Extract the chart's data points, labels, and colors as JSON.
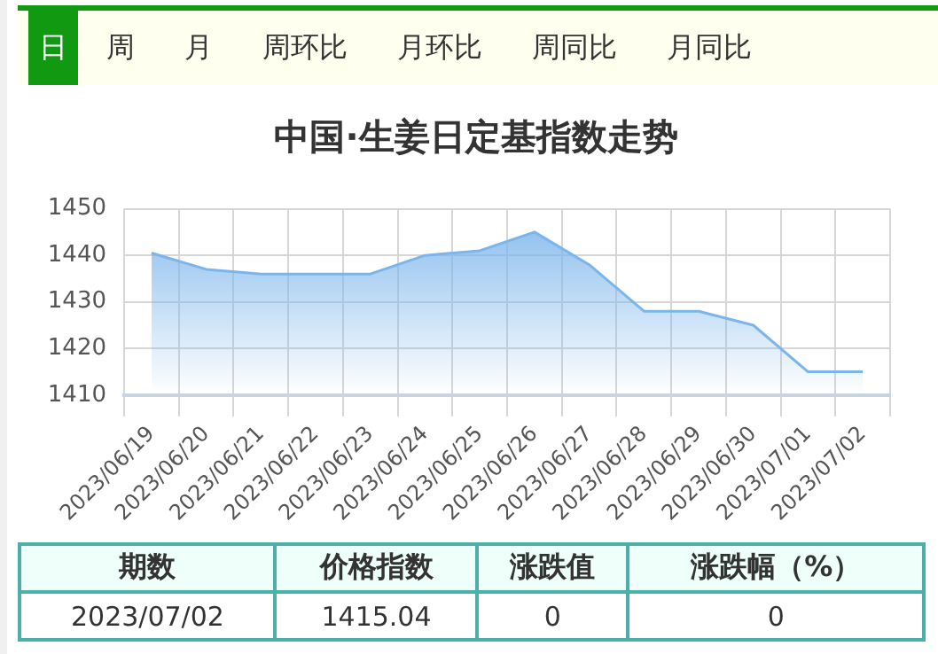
{
  "chart_data": [
    {
      "type": "other",
      "annotations": [
        "日",
        "周",
        "月",
        "周环比",
        "月环比",
        "周同比",
        "月同比"
      ]
    },
    {
      "type": "area",
      "title": "中国·生姜日定基指数走势",
      "categories": [
        "2023/06/19",
        "2023/06/20",
        "2023/06/21",
        "2023/06/22",
        "2023/06/23",
        "2023/06/24",
        "2023/06/25",
        "2023/06/26",
        "2023/06/27",
        "2023/06/28",
        "2023/06/29",
        "2023/06/30",
        "2023/07/01",
        "2023/07/02"
      ],
      "series": [
        {
          "color": "#7cb5ec",
          "values": [
            1440.5,
            1437,
            1436,
            1436,
            1436,
            1440,
            1441,
            1445,
            1438,
            1428,
            1428,
            1425,
            1415,
            1415
          ]
        }
      ],
      "ylim": [
        1410,
        1450
      ],
      "yticks": [
        1410,
        1420,
        1430,
        1440,
        1450
      ],
      "grid": true,
      "legend": false,
      "marker": "none"
    },
    {
      "type": "other",
      "categories": [
        "期数",
        "价格指数",
        "涨跌值",
        "涨跌幅（%）"
      ],
      "annotations": [
        "2023/07/02",
        "1415.04",
        "0",
        "0"
      ]
    }
  ]
}
